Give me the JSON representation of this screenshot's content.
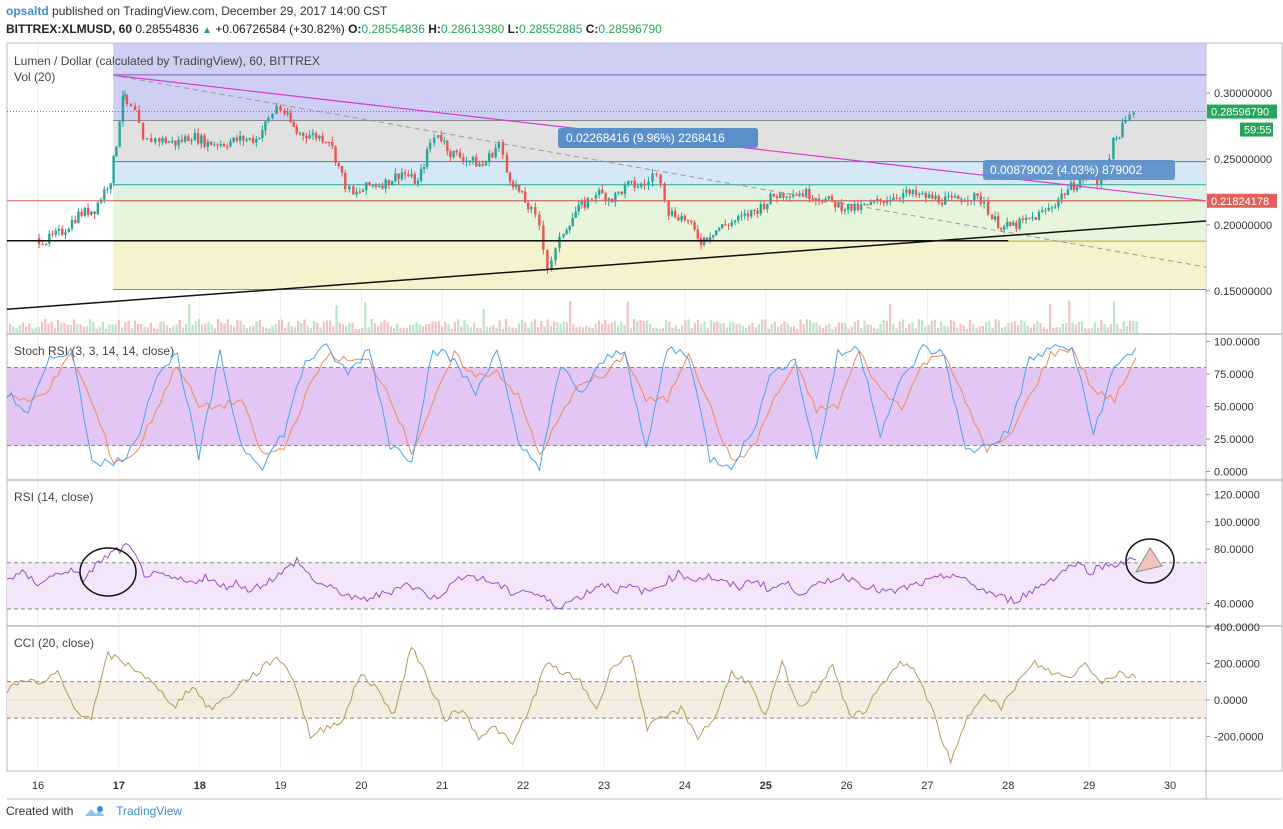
{
  "header": {
    "user": "opsaltd",
    "published": "published on TradingView.com, December 29, 2017 14:00 CST",
    "symbol": "BITTREX:XLMUSD, 60",
    "last": "0.28554836",
    "change": "+0.06726584 (+30.82%)",
    "o_label": "O:",
    "o": "0.28554836",
    "h_label": "H:",
    "h": "0.28613380",
    "l_label": "L:",
    "l": "0.28552885",
    "c_label": "C:",
    "c": "0.28596790"
  },
  "footer": {
    "created": "Created with",
    "brand": "TradingView"
  },
  "colors": {
    "up": "#26a69a",
    "down": "#ef5350",
    "stoch_k": "#4aa3f0",
    "stoch_d": "#f08a5d",
    "rsi": "#9c4fc4",
    "cci": "#b9995c"
  },
  "chart_data": [
    {
      "type": "candlestick",
      "title": "Lumen / Dollar (calculated by TradingView), 60, BITTREX",
      "volume_label": "Vol (20)",
      "x_ticks": [
        "16",
        "17",
        "18",
        "19",
        "20",
        "21",
        "22",
        "23",
        "24",
        "25",
        "26",
        "27",
        "28",
        "29",
        "30"
      ],
      "bold_ticks": [
        "17",
        "18",
        "25"
      ],
      "y_ticks": [
        "0.30000000",
        "0.25000000",
        "0.20000000",
        "0.15000000"
      ],
      "y_tick_values": [
        0.3,
        0.25,
        0.2,
        0.15
      ],
      "ylim": [
        0.118,
        0.338
      ],
      "last_price": "0.28596790",
      "countdown": "59:55",
      "level_price": "0.21824178",
      "annotations": [
        "0.02268416 (9.96%) 2268416",
        "0.00879002 (4.03%) 879002"
      ],
      "fib_levels": [
        0.3138,
        0.2792,
        0.248,
        0.2305,
        0.2183,
        0.1877,
        0.151
      ],
      "price_path": [
        [
          15.97,
          0.19
        ],
        [
          16.1,
          0.188
        ],
        [
          16.3,
          0.195
        ],
        [
          16.5,
          0.208
        ],
        [
          16.7,
          0.212
        ],
        [
          16.9,
          0.235
        ],
        [
          16.97,
          0.262
        ],
        [
          17.05,
          0.3
        ],
        [
          17.1,
          0.29
        ],
        [
          17.2,
          0.285
        ],
        [
          17.3,
          0.262
        ],
        [
          17.4,
          0.265
        ],
        [
          17.5,
          0.265
        ],
        [
          17.7,
          0.262
        ],
        [
          17.9,
          0.268
        ],
        [
          18.1,
          0.262
        ],
        [
          18.3,
          0.262
        ],
        [
          18.5,
          0.265
        ],
        [
          18.7,
          0.265
        ],
        [
          18.85,
          0.28
        ],
        [
          18.95,
          0.29
        ],
        [
          19.05,
          0.285
        ],
        [
          19.2,
          0.27
        ],
        [
          19.4,
          0.268
        ],
        [
          19.6,
          0.265
        ],
        [
          19.8,
          0.23
        ],
        [
          19.9,
          0.222
        ],
        [
          20.1,
          0.23
        ],
        [
          20.3,
          0.232
        ],
        [
          20.5,
          0.24
        ],
        [
          20.7,
          0.232
        ],
        [
          20.85,
          0.262
        ],
        [
          20.95,
          0.27
        ],
        [
          21.1,
          0.255
        ],
        [
          21.3,
          0.25
        ],
        [
          21.5,
          0.245
        ],
        [
          21.7,
          0.262
        ],
        [
          21.8,
          0.24
        ],
        [
          21.95,
          0.225
        ],
        [
          22.1,
          0.21
        ],
        [
          22.2,
          0.2
        ],
        [
          22.3,
          0.168
        ],
        [
          22.4,
          0.18
        ],
        [
          22.5,
          0.195
        ],
        [
          22.65,
          0.21
        ],
        [
          22.8,
          0.218
        ],
        [
          22.9,
          0.225
        ],
        [
          23.1,
          0.22
        ],
        [
          23.3,
          0.23
        ],
        [
          23.5,
          0.23
        ],
        [
          23.6,
          0.238
        ],
        [
          23.7,
          0.235
        ],
        [
          23.8,
          0.21
        ],
        [
          24.0,
          0.205
        ],
        [
          24.2,
          0.188
        ],
        [
          24.35,
          0.195
        ],
        [
          24.5,
          0.2
        ],
        [
          24.7,
          0.205
        ],
        [
          24.9,
          0.212
        ],
        [
          25.1,
          0.222
        ],
        [
          25.3,
          0.225
        ],
        [
          25.5,
          0.224
        ],
        [
          25.7,
          0.22
        ],
        [
          25.9,
          0.215
        ],
        [
          26.1,
          0.212
        ],
        [
          26.3,
          0.215
        ],
        [
          26.5,
          0.22
        ],
        [
          26.7,
          0.224
        ],
        [
          26.9,
          0.222
        ],
        [
          27.1,
          0.22
        ],
        [
          27.3,
          0.218
        ],
        [
          27.5,
          0.222
        ],
        [
          27.7,
          0.218
        ],
        [
          27.8,
          0.205
        ],
        [
          27.95,
          0.198
        ],
        [
          28.1,
          0.2
        ],
        [
          28.3,
          0.205
        ],
        [
          28.5,
          0.212
        ],
        [
          28.7,
          0.225
        ],
        [
          28.85,
          0.232
        ],
        [
          29.0,
          0.24
        ],
        [
          29.1,
          0.23
        ],
        [
          29.2,
          0.245
        ],
        [
          29.3,
          0.262
        ],
        [
          29.45,
          0.278
        ],
        [
          29.55,
          0.286
        ]
      ]
    },
    {
      "type": "line",
      "title": "Stoch RSI (3, 3, 14, 14, close)",
      "y_ticks": [
        "100.0000",
        "75.0000",
        "50.0000",
        "25.0000",
        "0.0000"
      ],
      "y_tick_values": [
        100,
        75,
        50,
        25,
        0
      ],
      "ylim": [
        -5,
        105
      ],
      "band": [
        20,
        80
      ],
      "series": [
        {
          "values_k": [
            60,
            45,
            85,
            95,
            10,
            5,
            20,
            75,
            90,
            10,
            90,
            20,
            5,
            30,
            85,
            95,
            75,
            95,
            20,
            10,
            95,
            85,
            60,
            95,
            20,
            5,
            80,
            60,
            85,
            95,
            15,
            95,
            90,
            10,
            5,
            30,
            80,
            85,
            10,
            90,
            95,
            30,
            70,
            95,
            90,
            15,
            20,
            30,
            85,
            95,
            95,
            30,
            80,
            95
          ]
        }
      ]
    },
    {
      "type": "line",
      "title": "RSI (14, close)",
      "y_ticks": [
        "120.0000",
        "100.0000",
        "80.0000",
        "40.0000"
      ],
      "y_tick_values": [
        120,
        100,
        80,
        40
      ],
      "ylim": [
        25,
        130
      ],
      "band": [
        36,
        70
      ],
      "values": [
        58,
        62,
        55,
        60,
        65,
        58,
        70,
        78,
        82,
        62,
        60,
        58,
        55,
        60,
        52,
        55,
        50,
        56,
        62,
        72,
        58,
        52,
        48,
        42,
        45,
        48,
        55,
        50,
        44,
        52,
        62,
        58,
        55,
        48,
        50,
        45,
        38,
        42,
        48,
        55,
        50,
        52,
        48,
        55,
        62,
        58,
        60,
        55,
        52,
        58,
        50,
        55,
        48,
        52,
        58,
        60,
        55,
        50,
        48,
        52,
        55,
        58,
        62,
        55,
        50,
        45,
        42,
        48,
        55,
        62,
        70,
        64,
        68,
        70,
        72
      ]
    },
    {
      "type": "line",
      "title": "CCI (20, close)",
      "y_ticks": [
        "400.0000",
        "200.0000",
        "0.0000",
        "-200.0000"
      ],
      "y_tick_values": [
        400,
        200,
        0,
        -200
      ],
      "ylim": [
        -390,
        400
      ],
      "band": [
        -100,
        100
      ],
      "values": [
        50,
        120,
        80,
        150,
        -50,
        -100,
        250,
        200,
        150,
        50,
        -30,
        80,
        -50,
        10,
        100,
        160,
        240,
        120,
        -200,
        -150,
        -100,
        150,
        50,
        -80,
        300,
        100,
        -100,
        -50,
        -200,
        -150,
        -250,
        -50,
        200,
        150,
        100,
        -50,
        200,
        250,
        -150,
        -100,
        -50,
        -200,
        -100,
        150,
        100,
        -100,
        200,
        -50,
        50,
        200,
        -100,
        -50,
        100,
        200,
        150,
        -80,
        -350,
        -100,
        50,
        -50,
        100,
        200,
        150,
        120,
        200,
        100,
        150,
        120
      ]
    }
  ]
}
